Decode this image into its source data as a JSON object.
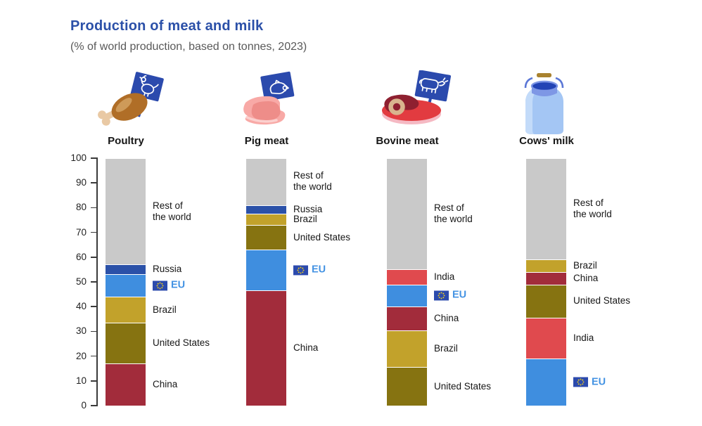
{
  "title": "Production of meat and milk",
  "subtitle": "(% of world production, based on tonnes, 2023)",
  "colors": {
    "title": "#2B50A8",
    "subtitle": "#595959",
    "text": "#161616",
    "axis": "#3A3A3A",
    "eu_label": "#4493E3",
    "sign_blue": "#2B4AAD",
    "flag_star_yellow": "#F7D117",
    "segments": {
      "rest": "#C9C9C9",
      "russia": "#2B51A8",
      "eu": "#3F8EDF",
      "brazil": "#C2A22B",
      "united_states": "#867311",
      "china": "#A22C3B",
      "india": "#E04A4E"
    }
  },
  "y_axis": {
    "min": 0,
    "max": 100,
    "step": 10,
    "ticks": [
      "0",
      "10",
      "20",
      "30",
      "40",
      "50",
      "60",
      "70",
      "80",
      "90",
      "100"
    ]
  },
  "chart_data": {
    "type": "bar",
    "stacked": true,
    "orientation": "vertical",
    "unit": "% of world production (tonnes, 2023)",
    "ylim": [
      0,
      100
    ],
    "categories": [
      "Poultry",
      "Pig meat",
      "Bovine meat",
      "Cows' milk"
    ],
    "charts": [
      {
        "category": "Poultry",
        "icon": "drumstick-eu-sign",
        "segments": [
          {
            "label": "China",
            "value": 17,
            "color_key": "china"
          },
          {
            "label": "United States",
            "value": 16.5,
            "color_key": "united_states"
          },
          {
            "label": "Brazil",
            "value": 10.5,
            "color_key": "brazil"
          },
          {
            "label": "EU",
            "value": 9,
            "color_key": "eu",
            "eu_flag": true
          },
          {
            "label": "Russia",
            "value": 4,
            "color_key": "russia"
          },
          {
            "label": "Rest of\nthe world",
            "value": 43,
            "color_key": "rest"
          }
        ]
      },
      {
        "category": "Pig meat",
        "icon": "pork-eu-sign",
        "segments": [
          {
            "label": "China",
            "value": 46.5,
            "color_key": "china"
          },
          {
            "label": "EU",
            "value": 16.5,
            "color_key": "eu",
            "eu_flag": true
          },
          {
            "label": "United States",
            "value": 10,
            "color_key": "united_states"
          },
          {
            "label": "Brazil",
            "value": 4.5,
            "color_key": "brazil"
          },
          {
            "label": "Russia",
            "value": 3.5,
            "color_key": "russia"
          },
          {
            "label": "Rest of\nthe world",
            "value": 19,
            "color_key": "rest"
          }
        ]
      },
      {
        "category": "Bovine meat",
        "icon": "steak-eu-sign",
        "segments": [
          {
            "label": "United States",
            "value": 15.5,
            "color_key": "united_states"
          },
          {
            "label": "Brazil",
            "value": 15,
            "color_key": "brazil"
          },
          {
            "label": "China",
            "value": 9.5,
            "color_key": "china"
          },
          {
            "label": "EU",
            "value": 9,
            "color_key": "eu",
            "eu_flag": true
          },
          {
            "label": "India",
            "value": 6,
            "color_key": "india"
          },
          {
            "label": "Rest of\nthe world",
            "value": 45,
            "color_key": "rest"
          }
        ]
      },
      {
        "category": "Cows' milk",
        "icon": "milk-can",
        "segments": [
          {
            "label": "EU",
            "value": 19,
            "color_key": "eu",
            "eu_flag": true
          },
          {
            "label": "India",
            "value": 16.5,
            "color_key": "india"
          },
          {
            "label": "United States",
            "value": 13.5,
            "color_key": "united_states"
          },
          {
            "label": "China",
            "value": 5,
            "color_key": "china"
          },
          {
            "label": "Brazil",
            "value": 5,
            "color_key": "brazil"
          },
          {
            "label": "Rest of\nthe world",
            "value": 41,
            "color_key": "rest"
          }
        ]
      }
    ]
  }
}
